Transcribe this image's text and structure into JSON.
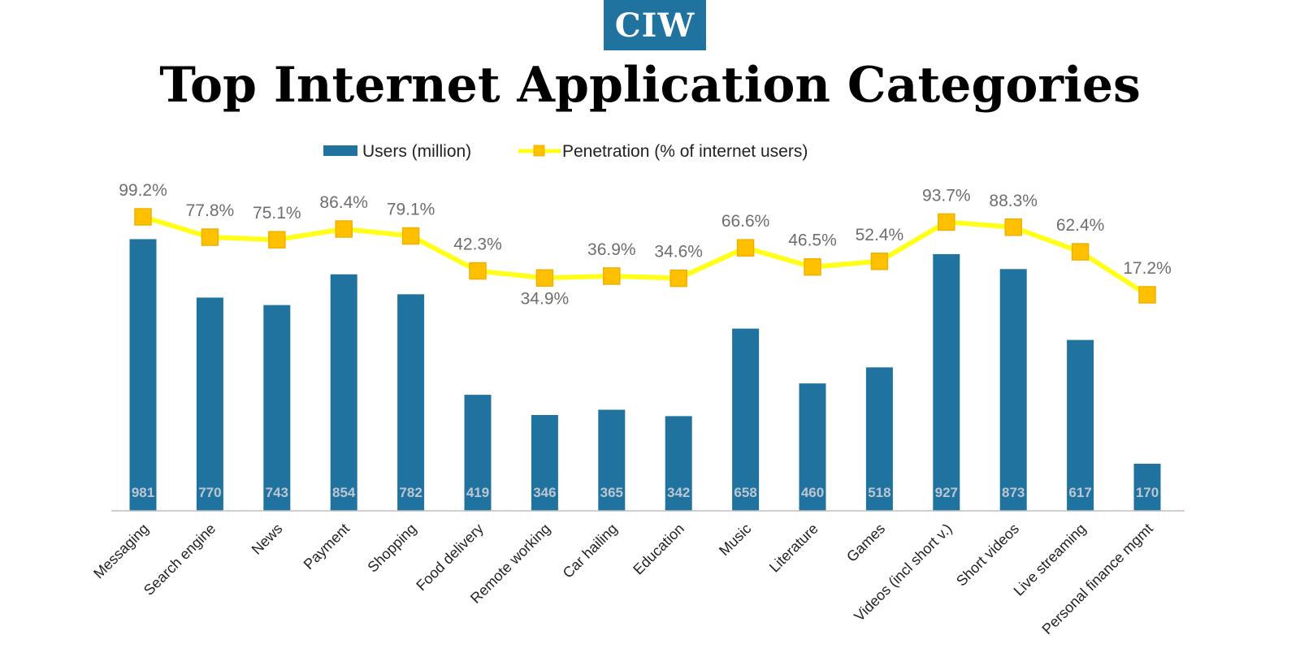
{
  "header": {
    "logo_text": "CIW",
    "title": "Top Internet Application Categories"
  },
  "colors": {
    "logo_bg": "#21739f",
    "bar": "#21739f",
    "line": "#ffff1a",
    "marker_fill": "#ffc000",
    "marker_stroke": "#f0b000",
    "pct_label": "#6e6e6e",
    "bar_label": "#bcc6d2"
  },
  "chart_data": {
    "type": "bar",
    "categories": [
      "Messaging",
      "Search engine",
      "News",
      "Payment",
      "Shopping",
      "Food delivery",
      "Remote working",
      "Car hailing",
      "Education",
      "Music",
      "Literature",
      "Games",
      "Videos (incl short v.)",
      "Short videos",
      "Live streaming",
      "Personal finance mgmt"
    ],
    "legend_position": "top",
    "grid": false,
    "series": [
      {
        "name": "Users (million)",
        "type": "bar",
        "values": [
          981,
          770,
          743,
          854,
          782,
          419,
          346,
          365,
          342,
          658,
          460,
          518,
          927,
          873,
          617,
          170
        ],
        "labels": [
          "981",
          "770",
          "743",
          "854",
          "782",
          "419",
          "346",
          "365",
          "342",
          "658",
          "460",
          "518",
          "927",
          "873",
          "617",
          "170"
        ]
      },
      {
        "name": "Penetration (% of internet users)",
        "type": "line",
        "values": [
          99.2,
          77.8,
          75.1,
          86.4,
          79.1,
          42.3,
          34.9,
          36.9,
          34.6,
          66.6,
          46.5,
          52.4,
          93.7,
          88.3,
          62.4,
          17.2
        ],
        "labels": [
          "99.2%",
          "77.8%",
          "75.1%",
          "86.4%",
          "79.1%",
          "42.3%",
          "34.9%",
          "36.9%",
          "34.6%",
          "66.6%",
          "46.5%",
          "52.4%",
          "93.7%",
          "88.3%",
          "62.4%",
          "17.2%"
        ],
        "label_below": [
          false,
          false,
          false,
          false,
          false,
          false,
          true,
          false,
          false,
          false,
          false,
          false,
          false,
          false,
          false,
          false
        ]
      }
    ]
  }
}
